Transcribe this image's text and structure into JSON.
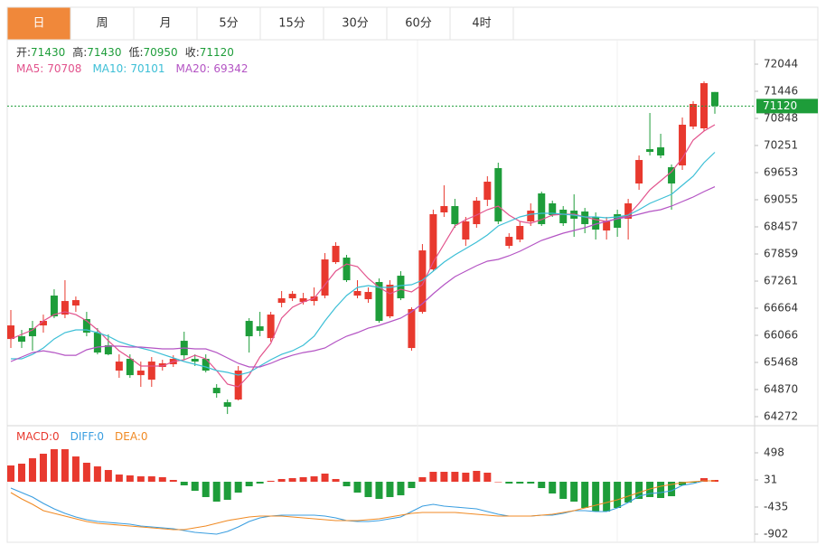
{
  "tabs": [
    "日",
    "周",
    "月",
    "5分",
    "15分",
    "30分",
    "60分",
    "4时"
  ],
  "active_tab": 0,
  "chart_data": [
    {
      "type": "candlestick",
      "up_color": "#e8392e",
      "down_color": "#1e9d3a",
      "grid": false,
      "ohlc_labels": [
        "开:",
        "高:",
        "低:",
        "收:"
      ],
      "ylim": [
        64093,
        72562
      ],
      "yticks": [
        72044,
        71446,
        70848,
        70251,
        69653,
        69055,
        68457,
        67859,
        67261,
        66664,
        66066,
        65468,
        64870,
        64272
      ],
      "open": [
        65985,
        66045,
        66224,
        66284,
        66942,
        66523,
        66723,
        66424,
        66125,
        65846,
        65288,
        65547,
        65188,
        65088,
        65368,
        65428,
        65945,
        65547,
        65547,
        64909,
        64590,
        64650,
        66384,
        66264,
        66005,
        66782,
        66882,
        66802,
        66822,
        66942,
        67679,
        67779,
        66942,
        66862,
        67241,
        66484,
        67380,
        65786,
        66583,
        67520,
        68776,
        68915,
        68178,
        68517,
        69054,
        69752,
        68038,
        68178,
        68577,
        69194,
        68975,
        68836,
        68815,
        68795,
        68676,
        68377,
        68736,
        68636,
        69413,
        70170,
        70210,
        69772,
        69812,
        70669,
        70629,
        71430
      ],
      "close": [
        66284,
        65925,
        66045,
        66384,
        66484,
        66822,
        66842,
        66125,
        65686,
        65646,
        65487,
        65188,
        65288,
        65487,
        65448,
        65547,
        65626,
        65487,
        65288,
        64789,
        64491,
        65288,
        66045,
        66165,
        66523,
        66882,
        66981,
        66882,
        66922,
        67739,
        68038,
        67281,
        67042,
        67022,
        66384,
        67181,
        66882,
        66643,
        67938,
        68736,
        68915,
        68517,
        68577,
        69034,
        69453,
        68577,
        68237,
        68477,
        68815,
        68517,
        68716,
        68537,
        68636,
        68517,
        68397,
        68577,
        68437,
        68975,
        69931,
        70110,
        70031,
        69413,
        70709,
        71167,
        71625,
        71120
      ],
      "high": [
        66623,
        66185,
        66384,
        66523,
        67081,
        67281,
        66922,
        66583,
        66224,
        66085,
        65646,
        65646,
        65487,
        65587,
        65527,
        65626,
        66145,
        65646,
        65646,
        64989,
        64650,
        65388,
        66444,
        66583,
        66583,
        67042,
        67042,
        67002,
        67121,
        67879,
        68118,
        67839,
        67281,
        67121,
        67320,
        67281,
        67480,
        66683,
        68078,
        68836,
        69373,
        69074,
        68676,
        69114,
        69573,
        69872,
        68317,
        68577,
        68975,
        69234,
        69034,
        68915,
        69174,
        68875,
        68776,
        68676,
        68836,
        69074,
        70031,
        70968,
        70509,
        69832,
        70868,
        71227,
        71665,
        71430
      ],
      "low": [
        65786,
        65786,
        65726,
        66125,
        66444,
        66444,
        66583,
        66045,
        65646,
        65626,
        65128,
        65128,
        64929,
        64929,
        65288,
        65368,
        65527,
        65388,
        65248,
        64690,
        64331,
        64630,
        65686,
        66045,
        65925,
        66683,
        66822,
        66743,
        66723,
        66882,
        67639,
        67241,
        66882,
        66782,
        66344,
        66444,
        66842,
        65726,
        66543,
        67480,
        68676,
        68437,
        68038,
        68437,
        68915,
        68517,
        67978,
        68118,
        68477,
        68477,
        68676,
        68477,
        68237,
        68317,
        68178,
        68178,
        68237,
        68178,
        69274,
        70031,
        69971,
        68836,
        69712,
        70609,
        70569,
        70950
      ],
      "series": [
        {
          "name": "MA5:",
          "color": "#e2528c",
          "values": [
            65985,
            66085,
            66185,
            66384,
            66523,
            66583,
            66523,
            66384,
            66185,
            65945,
            65726,
            65567,
            65388,
            65388,
            65388,
            65487,
            65527,
            65626,
            65547,
            65288,
            64989,
            64929,
            65188,
            65587,
            65886,
            66444,
            66683,
            66802,
            66882,
            67181,
            67480,
            67639,
            67580,
            67320,
            67121,
            66982,
            67081,
            67022,
            67181,
            67679,
            68078,
            68477,
            68616,
            68716,
            68836,
            68915,
            68716,
            68577,
            68537,
            68616,
            68716,
            68736,
            68736,
            68676,
            68616,
            68577,
            68636,
            68716,
            68975,
            69274,
            69473,
            69672,
            69971,
            70370,
            70569,
            70708
          ]
        },
        {
          "name": "MA10:",
          "color": "#3cbfd6",
          "values": [
            65547,
            65547,
            65646,
            65786,
            65985,
            66125,
            66185,
            66185,
            66125,
            66045,
            65925,
            65846,
            65786,
            65726,
            65646,
            65567,
            65487,
            65428,
            65368,
            65288,
            65248,
            65188,
            65248,
            65388,
            65527,
            65646,
            65726,
            65846,
            66045,
            66384,
            66683,
            66942,
            67121,
            67161,
            67121,
            67121,
            67161,
            67181,
            67281,
            67480,
            67679,
            67839,
            67978,
            68118,
            68277,
            68477,
            68577,
            68676,
            68736,
            68756,
            68756,
            68736,
            68716,
            68676,
            68676,
            68656,
            68676,
            68716,
            68836,
            68975,
            69074,
            69174,
            69373,
            69573,
            69872,
            70101
          ]
        },
        {
          "name": "MA20:",
          "color": "#b454c4",
          "values": [
            65487,
            65587,
            65686,
            65726,
            65686,
            65626,
            65626,
            65746,
            65806,
            65826,
            65826,
            65806,
            65806,
            65786,
            65766,
            65766,
            65786,
            65766,
            65766,
            65686,
            65567,
            65448,
            65368,
            65368,
            65448,
            65547,
            65626,
            65686,
            65726,
            65786,
            65925,
            66045,
            66125,
            66224,
            66284,
            66364,
            66444,
            66583,
            66763,
            66982,
            67181,
            67360,
            67480,
            67600,
            67699,
            67739,
            67819,
            67919,
            68038,
            68158,
            68237,
            68317,
            68377,
            68437,
            68517,
            68577,
            68636,
            68676,
            68736,
            68796,
            68836,
            68915,
            69015,
            69114,
            69234,
            69342
          ]
        }
      ]
    },
    {
      "type": "macd",
      "up_color": "#e8392e",
      "down_color": "#1e9d3a",
      "ylim": [
        -1042,
        949
      ],
      "yticks": [
        498,
        31,
        -435,
        -902
      ],
      "legend_values": [
        0,
        0,
        0
      ],
      "series": [
        {
          "name": "MACD:",
          "color": "#e8392e",
          "style": "bar",
          "values": [
            280,
            311,
            404,
            482,
            560,
            560,
            435,
            327,
            264,
            202,
            124,
            109,
            93,
            93,
            78,
            31,
            -62,
            -156,
            -264,
            -342,
            -311,
            -187,
            -78,
            -31,
            16,
            47,
            62,
            78,
            93,
            140,
            47,
            -78,
            -187,
            -264,
            -295,
            -264,
            -233,
            -109,
            78,
            171,
            171,
            171,
            156,
            187,
            156,
            0,
            -31,
            -31,
            -31,
            -109,
            -202,
            -295,
            -342,
            -451,
            -513,
            -513,
            -451,
            -358,
            -295,
            -264,
            -280,
            -249,
            -62,
            -16,
            62,
            31
          ]
        },
        {
          "name": "DIFF:",
          "color": "#3a9ee0",
          "style": "line",
          "values": [
            -109,
            -187,
            -264,
            -373,
            -467,
            -544,
            -606,
            -653,
            -684,
            -700,
            -715,
            -731,
            -762,
            -778,
            -793,
            -809,
            -840,
            -871,
            -886,
            -902,
            -855,
            -778,
            -684,
            -622,
            -591,
            -575,
            -575,
            -575,
            -575,
            -591,
            -622,
            -669,
            -684,
            -684,
            -669,
            -638,
            -606,
            -513,
            -420,
            -389,
            -420,
            -435,
            -451,
            -467,
            -513,
            -560,
            -591,
            -591,
            -591,
            -575,
            -575,
            -544,
            -498,
            -498,
            -513,
            -513,
            -451,
            -358,
            -249,
            -202,
            -187,
            -156,
            -62,
            -31,
            16,
            16
          ]
        },
        {
          "name": "DEA:",
          "color": "#f08a24",
          "style": "line",
          "values": [
            -187,
            -295,
            -389,
            -498,
            -544,
            -591,
            -638,
            -684,
            -715,
            -731,
            -746,
            -762,
            -778,
            -793,
            -809,
            -824,
            -824,
            -793,
            -762,
            -715,
            -669,
            -638,
            -606,
            -591,
            -591,
            -591,
            -606,
            -622,
            -638,
            -653,
            -669,
            -669,
            -669,
            -653,
            -638,
            -606,
            -575,
            -544,
            -529,
            -529,
            -529,
            -529,
            -544,
            -560,
            -575,
            -591,
            -591,
            -591,
            -591,
            -575,
            -560,
            -529,
            -498,
            -451,
            -404,
            -358,
            -311,
            -249,
            -187,
            -124,
            -78,
            -47,
            -16,
            0,
            16,
            16
          ]
        }
      ]
    }
  ]
}
